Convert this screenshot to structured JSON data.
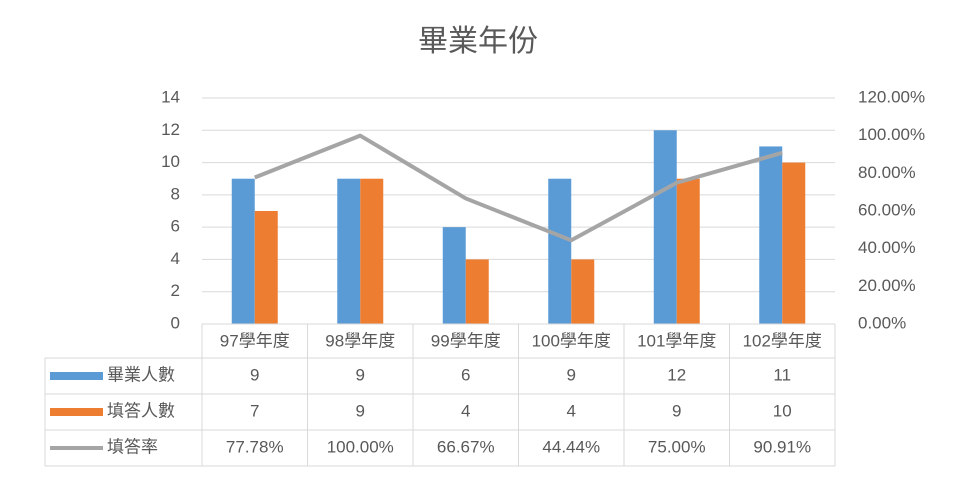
{
  "chart_data": {
    "type": "bar-line",
    "title": "畢業年份",
    "categories": [
      "97學年度",
      "98學年度",
      "99學年度",
      "100學年度",
      "101學年度",
      "102學年度"
    ],
    "series": [
      {
        "name": "畢業人數",
        "type": "bar",
        "color": "#5b9bd5",
        "values": [
          9,
          9,
          6,
          9,
          12,
          11
        ]
      },
      {
        "name": "填答人數",
        "type": "bar",
        "color": "#ed7d31",
        "values": [
          7,
          9,
          4,
          4,
          9,
          10
        ]
      },
      {
        "name": "填答率",
        "type": "line",
        "axis": "y2",
        "color": "#a5a5a5",
        "values": [
          77.78,
          100,
          66.67,
          44.44,
          75,
          90.91
        ],
        "value_labels": [
          "77.78%",
          "100.00%",
          "66.67%",
          "44.44%",
          "75.00%",
          "90.91%"
        ]
      }
    ],
    "ylim": [
      0,
      14
    ],
    "yticks": [
      0,
      2,
      4,
      6,
      8,
      10,
      12,
      14
    ],
    "y2lim": [
      0,
      120
    ],
    "y2ticks": [
      {
        "value": 0,
        "label": "0.00%"
      },
      {
        "value": 20,
        "label": "20.00%"
      },
      {
        "value": 40,
        "label": "40.00%"
      },
      {
        "value": 60,
        "label": "60.00%"
      },
      {
        "value": 80,
        "label": "80.00%"
      },
      {
        "value": 100,
        "label": "100.00%"
      },
      {
        "value": 120,
        "label": "120.00%"
      }
    ],
    "grid": true,
    "data_table": true
  }
}
